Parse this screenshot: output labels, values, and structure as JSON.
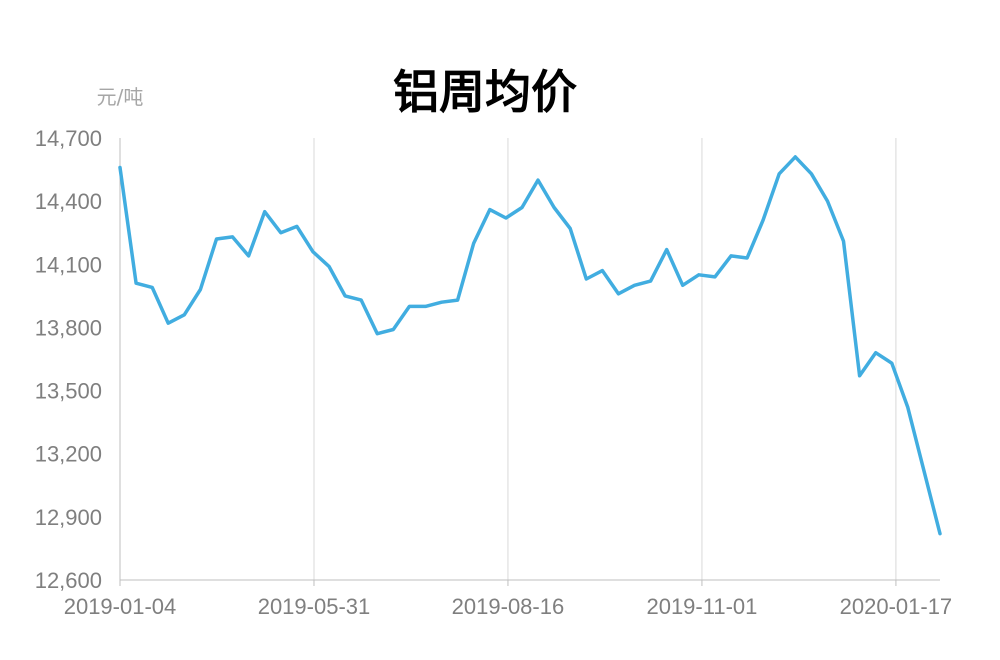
{
  "chart_data": {
    "type": "line",
    "title": "铝周均价",
    "ylabel": "元/吨",
    "xlabel": "",
    "ylim": [
      12600,
      14700
    ],
    "yticks": [
      "14,700",
      "14,400",
      "14,100",
      "13,800",
      "13,500",
      "13,200",
      "12,900",
      "12,600"
    ],
    "xticks": [
      "2019-01-04",
      "2019-05-31",
      "2019-08-16",
      "2019-11-01",
      "2020-01-17"
    ],
    "grid": "vertical",
    "legend": "none",
    "colors": {
      "line": "#41ade0",
      "grid": "#d9d9d9",
      "axis": "#bfbfbf"
    },
    "series": [
      {
        "values": [
          14560,
          14010,
          13990,
          13820,
          13860,
          13980,
          14220,
          14230,
          14140,
          14350,
          14250,
          14280,
          14160,
          14090,
          13950,
          13930,
          13770,
          13790,
          13900,
          13900,
          13920,
          13930,
          14200,
          14360,
          14320,
          14370,
          14500,
          14370,
          14270,
          14030,
          14070,
          13960,
          14000,
          14020,
          14170,
          14000,
          14050,
          14040,
          14140,
          14130,
          14310,
          14530,
          14610,
          14530,
          14400,
          14210,
          13570,
          13680,
          13630,
          13420,
          13120,
          12820
        ]
      }
    ]
  }
}
